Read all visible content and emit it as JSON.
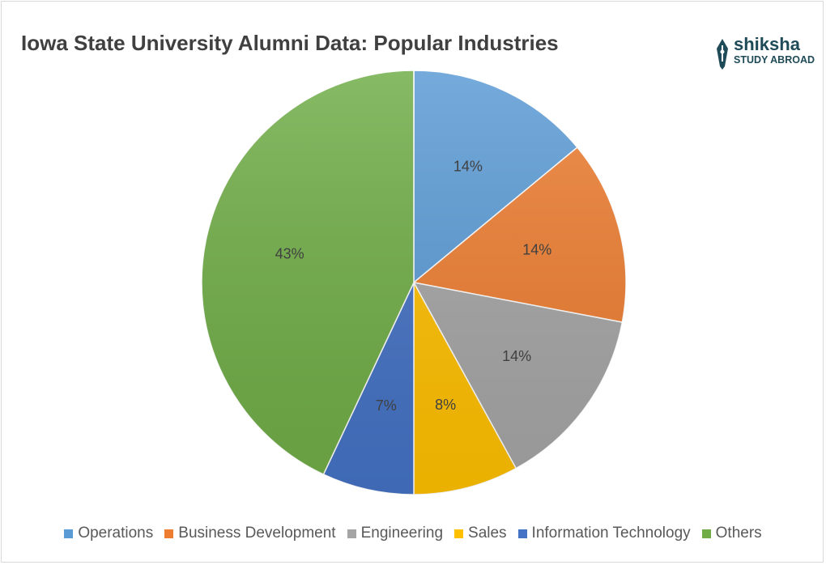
{
  "chart_data": {
    "type": "pie",
    "title": "Iowa State University Alumni Data: Popular Industries",
    "categories": [
      "Operations",
      "Business Development",
      "Engineering",
      "Sales",
      "Information Technology",
      "Others"
    ],
    "values": [
      14,
      14,
      14,
      8,
      7,
      43
    ],
    "labels": [
      "14%",
      "14%",
      "14%",
      "8%",
      "7%",
      "43%"
    ],
    "colors": [
      "#5b9bd5",
      "#ed7d31",
      "#a5a5a5",
      "#ffc000",
      "#4472c4",
      "#70ad47"
    ],
    "legend_position": "bottom"
  },
  "logo": {
    "word": "shiksha",
    "sub": "STUDY ABROAD",
    "icon": "pen-nib-icon",
    "color": "#1f4a57"
  }
}
